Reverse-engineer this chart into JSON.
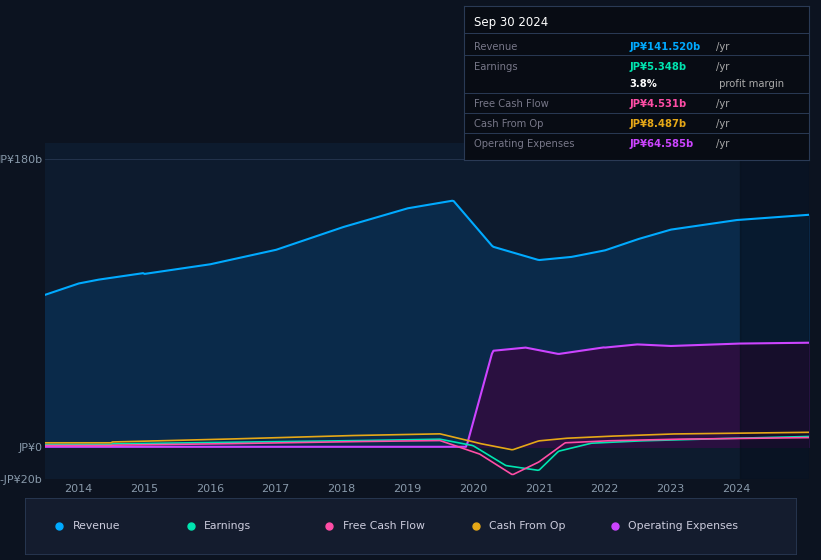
{
  "bg_color": "#0c1320",
  "plot_bg_color": "#0d1b2e",
  "ylim": [
    -20,
    190
  ],
  "xlim_start": 2013.5,
  "xlim_end": 2025.1,
  "xticks": [
    2014,
    2015,
    2016,
    2017,
    2018,
    2019,
    2020,
    2021,
    2022,
    2023,
    2024
  ],
  "ytick_positions": [
    -20,
    0,
    180
  ],
  "ytick_labels": [
    "-JP¥20b",
    "JP¥0",
    "JP¥180b"
  ],
  "colors": {
    "revenue": "#00aaff",
    "earnings": "#00e5b0",
    "free_cash_flow": "#ff4da6",
    "cash_from_op": "#e6a817",
    "operating_expenses": "#cc44ff",
    "revenue_fill": "#0a2a4a",
    "opex_fill": "#2a1040"
  },
  "legend": [
    {
      "label": "Revenue",
      "color": "#00aaff"
    },
    {
      "label": "Earnings",
      "color": "#00e5b0"
    },
    {
      "label": "Free Cash Flow",
      "color": "#ff4da6"
    },
    {
      "label": "Cash From Op",
      "color": "#e6a817"
    },
    {
      "label": "Operating Expenses",
      "color": "#cc44ff"
    }
  ],
  "info_box_title": "Sep 30 2024",
  "info_rows": [
    {
      "label": "Revenue",
      "value": "JP¥141.520b",
      "suffix": "/yr",
      "value_color": "#00aaff"
    },
    {
      "label": "Earnings",
      "value": "JP¥5.348b",
      "suffix": "/yr",
      "value_color": "#00e5b0"
    },
    {
      "label": "",
      "value": "3.8%",
      "suffix": " profit margin",
      "value_color": "#ffffff"
    },
    {
      "label": "Free Cash Flow",
      "value": "JP¥4.531b",
      "suffix": "/yr",
      "value_color": "#ff4da6"
    },
    {
      "label": "Cash From Op",
      "value": "JP¥8.487b",
      "suffix": "/yr",
      "value_color": "#e6a817"
    },
    {
      "label": "Operating Expenses",
      "value": "JP¥64.585b",
      "suffix": "/yr",
      "value_color": "#cc44ff"
    }
  ]
}
